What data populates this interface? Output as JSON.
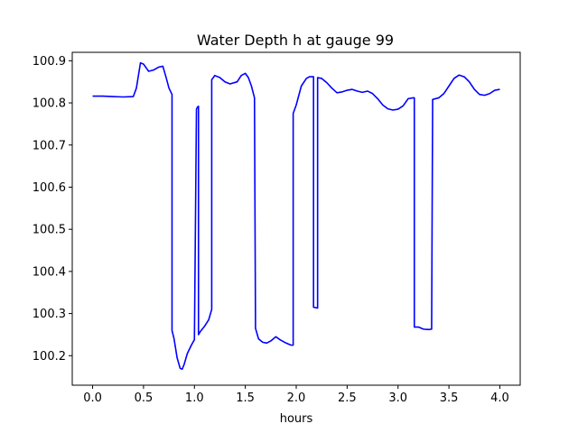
{
  "chart_data": {
    "type": "line",
    "title": "Water Depth h at gauge 99",
    "xlabel": "hours",
    "ylabel": "",
    "xlim": [
      -0.2,
      4.2
    ],
    "ylim": [
      100.13,
      100.92
    ],
    "x_ticks": [
      0.0,
      0.5,
      1.0,
      1.5,
      2.0,
      2.5,
      3.0,
      3.5,
      4.0
    ],
    "x_tick_labels": [
      "0.0",
      "0.5",
      "1.0",
      "1.5",
      "2.0",
      "2.5",
      "3.0",
      "3.5",
      "4.0"
    ],
    "y_ticks": [
      100.2,
      100.3,
      100.4,
      100.5,
      100.6,
      100.7,
      100.8,
      100.9
    ],
    "y_tick_labels": [
      "100.2",
      "100.3",
      "100.4",
      "100.5",
      "100.6",
      "100.7",
      "100.8",
      "100.9"
    ],
    "grid": false,
    "series": [
      {
        "color": "#0000ff",
        "x": [
          0.0,
          0.1,
          0.2,
          0.3,
          0.4,
          0.43,
          0.47,
          0.5,
          0.55,
          0.6,
          0.65,
          0.69,
          0.72,
          0.75,
          0.78,
          0.78,
          0.8,
          0.83,
          0.86,
          0.88,
          0.9,
          0.93,
          0.97,
          1.0,
          1.02,
          1.02,
          1.03,
          1.04,
          1.04,
          1.06,
          1.1,
          1.14,
          1.17,
          1.17,
          1.2,
          1.25,
          1.3,
          1.35,
          1.42,
          1.46,
          1.5,
          1.53,
          1.56,
          1.59,
          1.6,
          1.63,
          1.67,
          1.71,
          1.75,
          1.8,
          1.84,
          1.9,
          1.95,
          1.97,
          1.97,
          2.0,
          2.05,
          2.1,
          2.13,
          2.16,
          2.17,
          2.17,
          2.21,
          2.21,
          2.25,
          2.3,
          2.35,
          2.4,
          2.45,
          2.5,
          2.55,
          2.6,
          2.65,
          2.7,
          2.75,
          2.8,
          2.85,
          2.9,
          2.95,
          3.0,
          3.05,
          3.1,
          3.15,
          3.16,
          3.16,
          3.2,
          3.25,
          3.3,
          3.33,
          3.34,
          3.4,
          3.45,
          3.5,
          3.55,
          3.6,
          3.65,
          3.7,
          3.75,
          3.8,
          3.85,
          3.9,
          3.95,
          4.0
        ],
        "y": [
          100.816,
          100.816,
          100.815,
          100.814,
          100.815,
          100.835,
          100.895,
          100.892,
          100.875,
          100.878,
          100.885,
          100.887,
          100.862,
          100.835,
          100.82,
          100.26,
          100.24,
          100.195,
          100.17,
          100.168,
          100.18,
          100.205,
          100.225,
          100.238,
          100.785,
          100.785,
          100.79,
          100.792,
          100.25,
          100.258,
          100.27,
          100.285,
          100.31,
          100.855,
          100.865,
          100.86,
          100.85,
          100.845,
          100.85,
          100.865,
          100.87,
          100.86,
          100.84,
          100.812,
          100.265,
          100.24,
          100.232,
          100.23,
          100.235,
          100.245,
          100.238,
          100.23,
          100.225,
          100.225,
          100.775,
          100.795,
          100.84,
          100.858,
          100.862,
          100.862,
          100.862,
          100.315,
          100.313,
          100.86,
          100.858,
          100.848,
          100.835,
          100.824,
          100.826,
          100.83,
          100.832,
          100.828,
          100.825,
          100.828,
          100.822,
          100.81,
          100.795,
          100.786,
          100.783,
          100.785,
          100.793,
          100.81,
          100.812,
          100.812,
          100.268,
          100.268,
          100.263,
          100.262,
          100.263,
          100.808,
          100.812,
          100.822,
          100.84,
          100.858,
          100.866,
          100.862,
          100.85,
          100.832,
          100.82,
          100.818,
          100.822,
          100.83,
          100.832
        ]
      }
    ]
  }
}
